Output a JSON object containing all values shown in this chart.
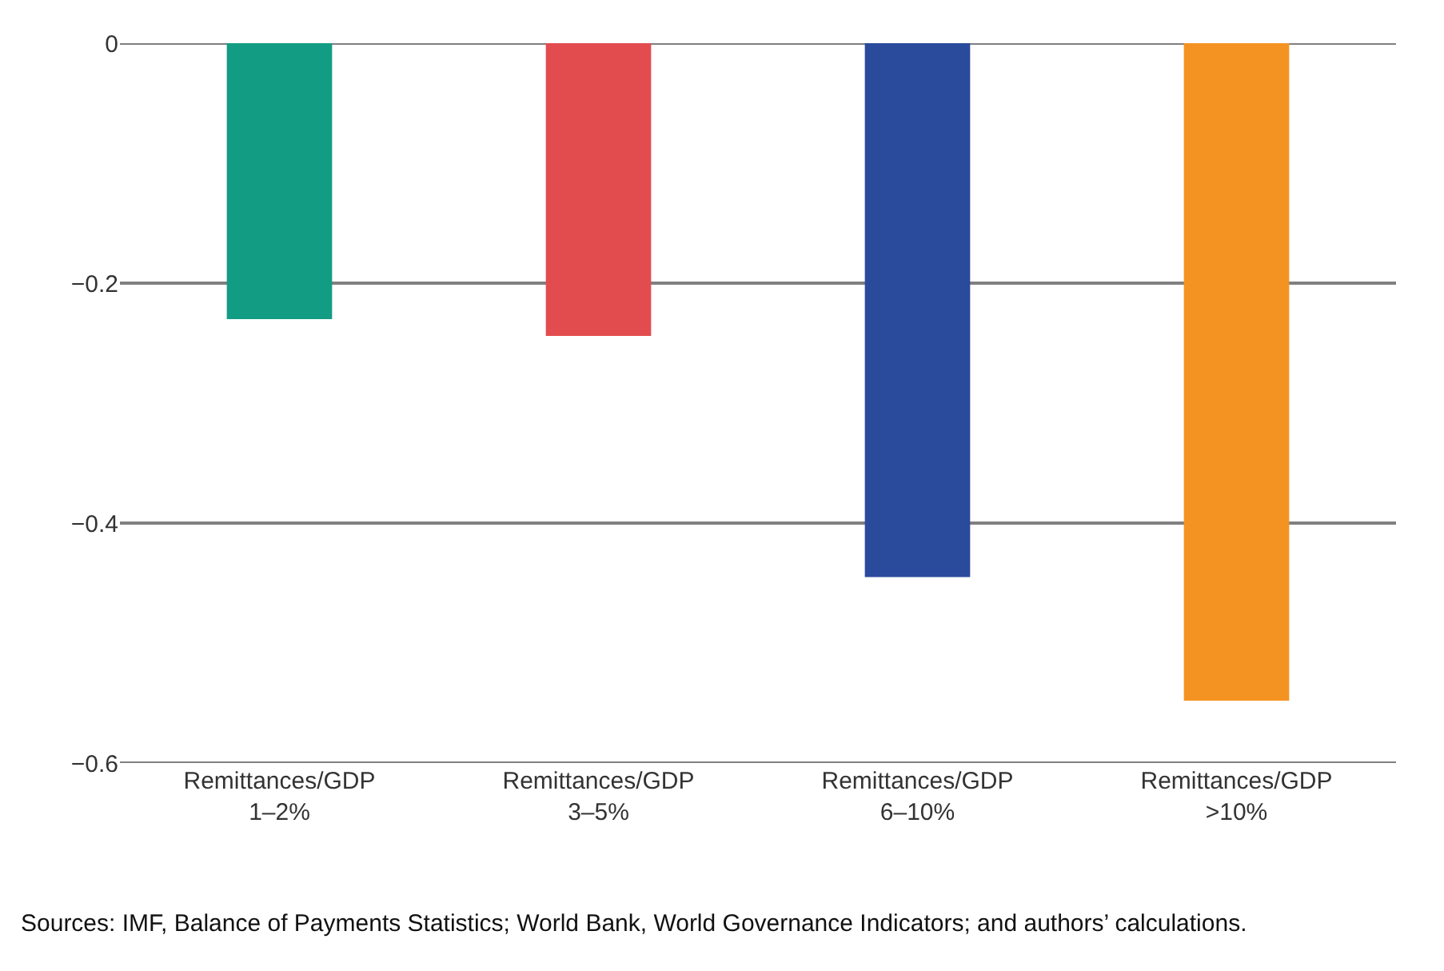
{
  "chart_data": {
    "type": "bar",
    "categories": [
      "Remittances/GDP\n1–2%",
      "Remittances/GDP\n3–5%",
      "Remittances/GDP\n6–10%",
      "Remittances/GDP\n>10%"
    ],
    "values": [
      -0.23,
      -0.244,
      -0.445,
      -0.548
    ],
    "colors": [
      "#139c84",
      "#e24c4f",
      "#2a4a9c",
      "#f49321"
    ],
    "ylim": [
      -0.6,
      0
    ],
    "yticks": [
      {
        "value": -0.6,
        "label": "−0.6"
      },
      {
        "value": -0.4,
        "label": "−0.4"
      },
      {
        "value": -0.2,
        "label": "−0.2"
      },
      0
    ],
    "grid": "y",
    "annotations": [
      "Sources: IMF, Balance of Payments Statistics; World Bank, World Governance Indicators; and authors’ calculations."
    ]
  }
}
